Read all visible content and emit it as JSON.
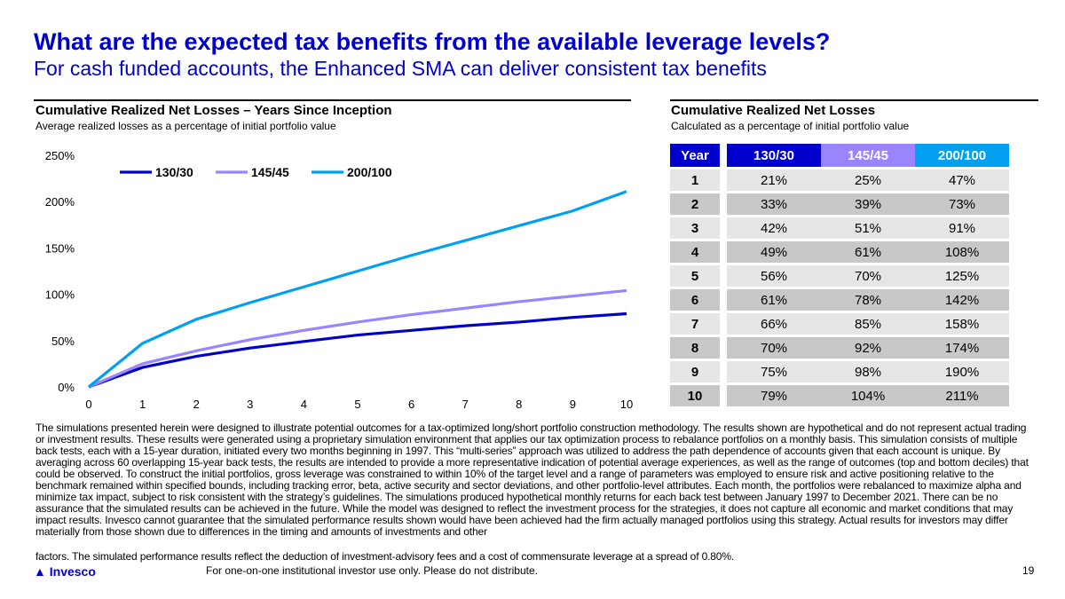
{
  "title": "What are the expected tax benefits from the available leverage levels?",
  "subtitle": "For cash funded accounts, the Enhanced SMA can deliver consistent tax benefits",
  "left": {
    "heading": "Cumulative Realized Net Losses – Years Since Inception",
    "sub": "Average realized losses as a percentage of initial portfolio value"
  },
  "right": {
    "heading": "Cumulative Realized Net Losses",
    "sub": "Calculated as a percentage of initial portfolio value",
    "headers": [
      "Year",
      "130/30",
      "145/45",
      "200/100"
    ],
    "rows": [
      [
        "1",
        "21%",
        "25%",
        "47%"
      ],
      [
        "2",
        "33%",
        "39%",
        "73%"
      ],
      [
        "3",
        "42%",
        "51%",
        "91%"
      ],
      [
        "4",
        "49%",
        "61%",
        "108%"
      ],
      [
        "5",
        "56%",
        "70%",
        "125%"
      ],
      [
        "6",
        "61%",
        "78%",
        "142%"
      ],
      [
        "7",
        "66%",
        "85%",
        "158%"
      ],
      [
        "8",
        "70%",
        "92%",
        "174%"
      ],
      [
        "9",
        "75%",
        "98%",
        "190%"
      ],
      [
        "10",
        "79%",
        "104%",
        "211%"
      ]
    ]
  },
  "chart_data": {
    "type": "line",
    "title": "Cumulative Realized Net Losses – Years Since Inception",
    "xlabel": "",
    "ylabel": "",
    "x": [
      0,
      1,
      2,
      3,
      4,
      5,
      6,
      7,
      8,
      9,
      10
    ],
    "ylim": [
      0,
      250
    ],
    "yticks": [
      0,
      50,
      100,
      150,
      200,
      250
    ],
    "ytick_labels": [
      "0%",
      "50%",
      "100%",
      "150%",
      "200%",
      "250%"
    ],
    "legend": "top-left",
    "series": [
      {
        "name": "130/30",
        "color": "#0000cc",
        "values": [
          0,
          21,
          33,
          42,
          49,
          56,
          61,
          66,
          70,
          75,
          79
        ]
      },
      {
        "name": "145/45",
        "color": "#9a84ff",
        "values": [
          0,
          25,
          39,
          51,
          61,
          70,
          78,
          85,
          92,
          98,
          104
        ]
      },
      {
        "name": "200/100",
        "color": "#00a0f0",
        "values": [
          0,
          47,
          73,
          91,
          108,
          125,
          142,
          158,
          174,
          190,
          211
        ]
      }
    ]
  },
  "header_colors": {
    "year": "#0000cc",
    "130/30": "#0000cc",
    "145/45": "#9a84ff",
    "200/100": "#00a0f0"
  },
  "footnote": "The simulations presented herein were designed to illustrate potential outcomes for a tax-optimized long/short portfolio construction methodology. The results shown are hypothetical and do not represent actual trading or investment results. These results were generated using a proprietary simulation environment that applies our tax optimization process to rebalance portfolios on a monthly basis. This simulation consists of multiple back tests, each with a 15-year duration, initiated every two months beginning in 1997. This “multi-series” approach was utilized to address the path dependence of accounts given that each account is unique. By averaging across 60 overlapping 15-year back tests, the results are intended to provide a more representative indication of potential average experiences, as well as the range of outcomes (top and bottom deciles) that could be observed.  To construct the initial portfolios, gross leverage was constrained to within 10% of the target level and a range of parameters was employed to ensure risk and active positioning relative to the benchmark remained within specified bounds, including tracking error, beta, active security and sector deviations, and other portfolio-level attributes. Each month, the portfolios were rebalanced to maximize alpha and minimize tax impact, subject to risk consistent with the strategy’s guidelines. The simulations produced hypothetical monthly returns for each back test between January 1997 to December 2021. There can be no assurance that the simulated results can be achieved in the future. While the model was designed to reflect the investment process for the strategies, it does not capture all economic and market conditions that may impact results. Invesco cannot guarantee that the simulated performance results shown would have been achieved had the firm actually managed portfolios using this strategy. Actual results for investors may differ materially from those shown due to differences in the timing and amounts of investments and other",
  "footnote2": "factors. The simulated performance results reflect the deduction of investment-advisory fees and a cost of commensurate leverage at a spread of 0.80%.",
  "footer": {
    "logo": "Invesco",
    "disclaimer": "For one-on-one institutional investor use only. Please do not distribute.",
    "page": "19"
  }
}
